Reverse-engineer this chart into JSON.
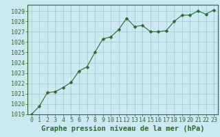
{
  "x": [
    0,
    1,
    2,
    3,
    4,
    5,
    6,
    7,
    8,
    9,
    10,
    11,
    12,
    13,
    14,
    15,
    16,
    17,
    18,
    19,
    20,
    21,
    22,
    23
  ],
  "y": [
    1019.0,
    1019.8,
    1021.1,
    1021.2,
    1021.6,
    1022.1,
    1023.2,
    1023.6,
    1025.0,
    1026.3,
    1026.5,
    1027.2,
    1028.3,
    1027.5,
    1027.6,
    1027.0,
    1027.0,
    1027.1,
    1028.0,
    1028.6,
    1028.6,
    1029.0,
    1028.7,
    1029.1
  ],
  "line_color": "#2d6a2d",
  "marker": "D",
  "marker_size": 2.5,
  "bg_color": "#cce8f0",
  "grid_color": "#99cccc",
  "xlabel": "Graphe pression niveau de la mer (hPa)",
  "xlabel_color": "#2d6a2d",
  "xlabel_fontsize": 7.5,
  "tick_color": "#2d6a2d",
  "tick_fontsize": 6,
  "ylim": [
    1019,
    1029.6
  ],
  "xlim": [
    -0.5,
    23.5
  ],
  "yticks": [
    1019,
    1020,
    1021,
    1022,
    1023,
    1024,
    1025,
    1026,
    1027,
    1028,
    1029
  ],
  "xticks": [
    0,
    1,
    2,
    3,
    4,
    5,
    6,
    7,
    8,
    9,
    10,
    11,
    12,
    13,
    14,
    15,
    16,
    17,
    18,
    19,
    20,
    21,
    22,
    23
  ]
}
